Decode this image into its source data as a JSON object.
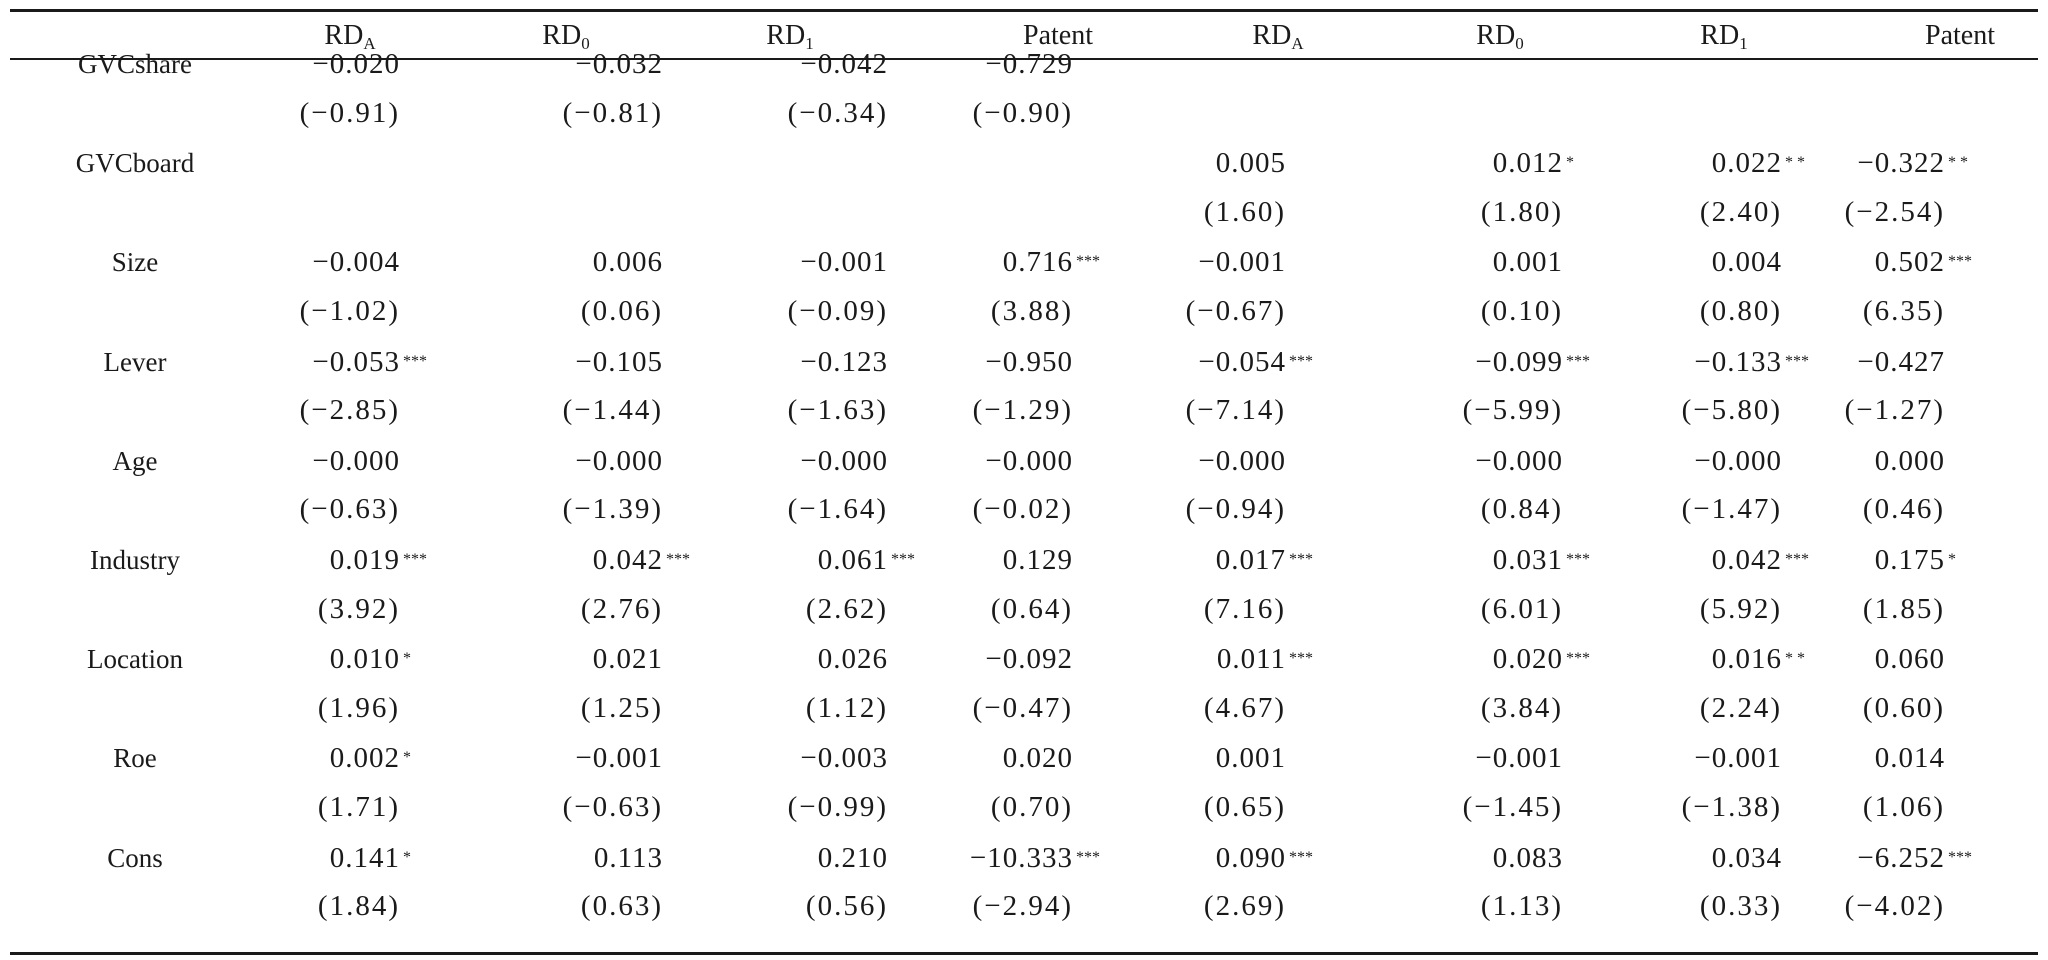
{
  "columns": [
    {
      "base": "RD",
      "sub": "A"
    },
    {
      "base": "RD",
      "sub": "0"
    },
    {
      "base": "RD",
      "sub": "1"
    },
    {
      "base": "Patent",
      "sub": ""
    },
    {
      "base": "RD",
      "sub": "A"
    },
    {
      "base": "RD",
      "sub": "0"
    },
    {
      "base": "RD",
      "sub": "1"
    },
    {
      "base": "Patent",
      "sub": ""
    }
  ],
  "rows": [
    {
      "label": "GVCshare",
      "coef": [
        [
          "−0.020",
          ""
        ],
        [
          "−0.032",
          ""
        ],
        [
          "−0.042",
          ""
        ],
        [
          "−0.729",
          ""
        ],
        [
          "",
          ""
        ],
        [
          "",
          ""
        ],
        [
          "",
          ""
        ],
        [
          "",
          ""
        ]
      ],
      "se": [
        "(−0.91)",
        "(−0.81)",
        "(−0.34)",
        "(−0.90)",
        "",
        "",
        "",
        ""
      ]
    },
    {
      "label": "GVCboard",
      "coef": [
        [
          "",
          ""
        ],
        [
          "",
          ""
        ],
        [
          "",
          ""
        ],
        [
          "",
          ""
        ],
        [
          "0.005",
          ""
        ],
        [
          "0.012",
          "*"
        ],
        [
          "0.022",
          "* *"
        ],
        [
          "−0.322",
          "* *"
        ]
      ],
      "se": [
        "",
        "",
        "",
        "",
        "(1.60)",
        "(1.80)",
        "(2.40)",
        "(−2.54)"
      ]
    },
    {
      "label": "Size",
      "coef": [
        [
          "−0.004",
          ""
        ],
        [
          "0.006",
          ""
        ],
        [
          "−0.001",
          ""
        ],
        [
          "0.716",
          "***"
        ],
        [
          "−0.001",
          ""
        ],
        [
          "0.001",
          ""
        ],
        [
          "0.004",
          ""
        ],
        [
          "0.502",
          "***"
        ]
      ],
      "se": [
        "(−1.02)",
        "(0.06)",
        "(−0.09)",
        "(3.88)",
        "(−0.67)",
        "(0.10)",
        "(0.80)",
        "(6.35)"
      ]
    },
    {
      "label": "Lever",
      "coef": [
        [
          "−0.053",
          "***"
        ],
        [
          "−0.105",
          ""
        ],
        [
          "−0.123",
          ""
        ],
        [
          "−0.950",
          ""
        ],
        [
          "−0.054",
          "***"
        ],
        [
          "−0.099",
          "***"
        ],
        [
          "−0.133",
          "***"
        ],
        [
          "−0.427",
          ""
        ]
      ],
      "se": [
        "(−2.85)",
        "(−1.44)",
        "(−1.63)",
        "(−1.29)",
        "(−7.14)",
        "(−5.99)",
        "(−5.80)",
        "(−1.27)"
      ]
    },
    {
      "label": "Age",
      "coef": [
        [
          "−0.000",
          ""
        ],
        [
          "−0.000",
          ""
        ],
        [
          "−0.000",
          ""
        ],
        [
          "−0.000",
          ""
        ],
        [
          "−0.000",
          ""
        ],
        [
          "−0.000",
          ""
        ],
        [
          "−0.000",
          ""
        ],
        [
          "0.000",
          ""
        ]
      ],
      "se": [
        "(−0.63)",
        "(−1.39)",
        "(−1.64)",
        "(−0.02)",
        "(−0.94)",
        "(0.84)",
        "(−1.47)",
        "(0.46)"
      ]
    },
    {
      "label": "Industry",
      "coef": [
        [
          "0.019",
          "***"
        ],
        [
          "0.042",
          "***"
        ],
        [
          "0.061",
          "***"
        ],
        [
          "0.129",
          ""
        ],
        [
          "0.017",
          "***"
        ],
        [
          "0.031",
          "***"
        ],
        [
          "0.042",
          "***"
        ],
        [
          "0.175",
          "*"
        ]
      ],
      "se": [
        "(3.92)",
        "(2.76)",
        "(2.62)",
        "(0.64)",
        "(7.16)",
        "(6.01)",
        "(5.92)",
        "(1.85)"
      ]
    },
    {
      "label": "Location",
      "coef": [
        [
          "0.010",
          "*"
        ],
        [
          "0.021",
          ""
        ],
        [
          "0.026",
          ""
        ],
        [
          "−0.092",
          ""
        ],
        [
          "0.011",
          "***"
        ],
        [
          "0.020",
          "***"
        ],
        [
          "0.016",
          "* *"
        ],
        [
          "0.060",
          ""
        ]
      ],
      "se": [
        "(1.96)",
        "(1.25)",
        "(1.12)",
        "(−0.47)",
        "(4.67)",
        "(3.84)",
        "(2.24)",
        "(0.60)"
      ]
    },
    {
      "label": "Roe",
      "coef": [
        [
          "0.002",
          "*"
        ],
        [
          "−0.001",
          ""
        ],
        [
          "−0.003",
          ""
        ],
        [
          "0.020",
          ""
        ],
        [
          "0.001",
          ""
        ],
        [
          "−0.001",
          ""
        ],
        [
          "−0.001",
          ""
        ],
        [
          "0.014",
          ""
        ]
      ],
      "se": [
        "(1.71)",
        "(−0.63)",
        "(−0.99)",
        "(0.70)",
        "(0.65)",
        "(−1.45)",
        "(−1.38)",
        "(1.06)"
      ]
    },
    {
      "label": "Cons",
      "coef": [
        [
          "0.141",
          "*"
        ],
        [
          "0.113",
          ""
        ],
        [
          "0.210",
          ""
        ],
        [
          "−10.333",
          "***"
        ],
        [
          "0.090",
          "***"
        ],
        [
          "0.083",
          ""
        ],
        [
          "0.034",
          ""
        ],
        [
          "−6.252",
          "***"
        ]
      ],
      "se": [
        "(1.84)",
        "(0.63)",
        "(0.56)",
        "(−2.94)",
        "(2.69)",
        "(1.13)",
        "(0.33)",
        "(−4.02)"
      ]
    }
  ]
}
